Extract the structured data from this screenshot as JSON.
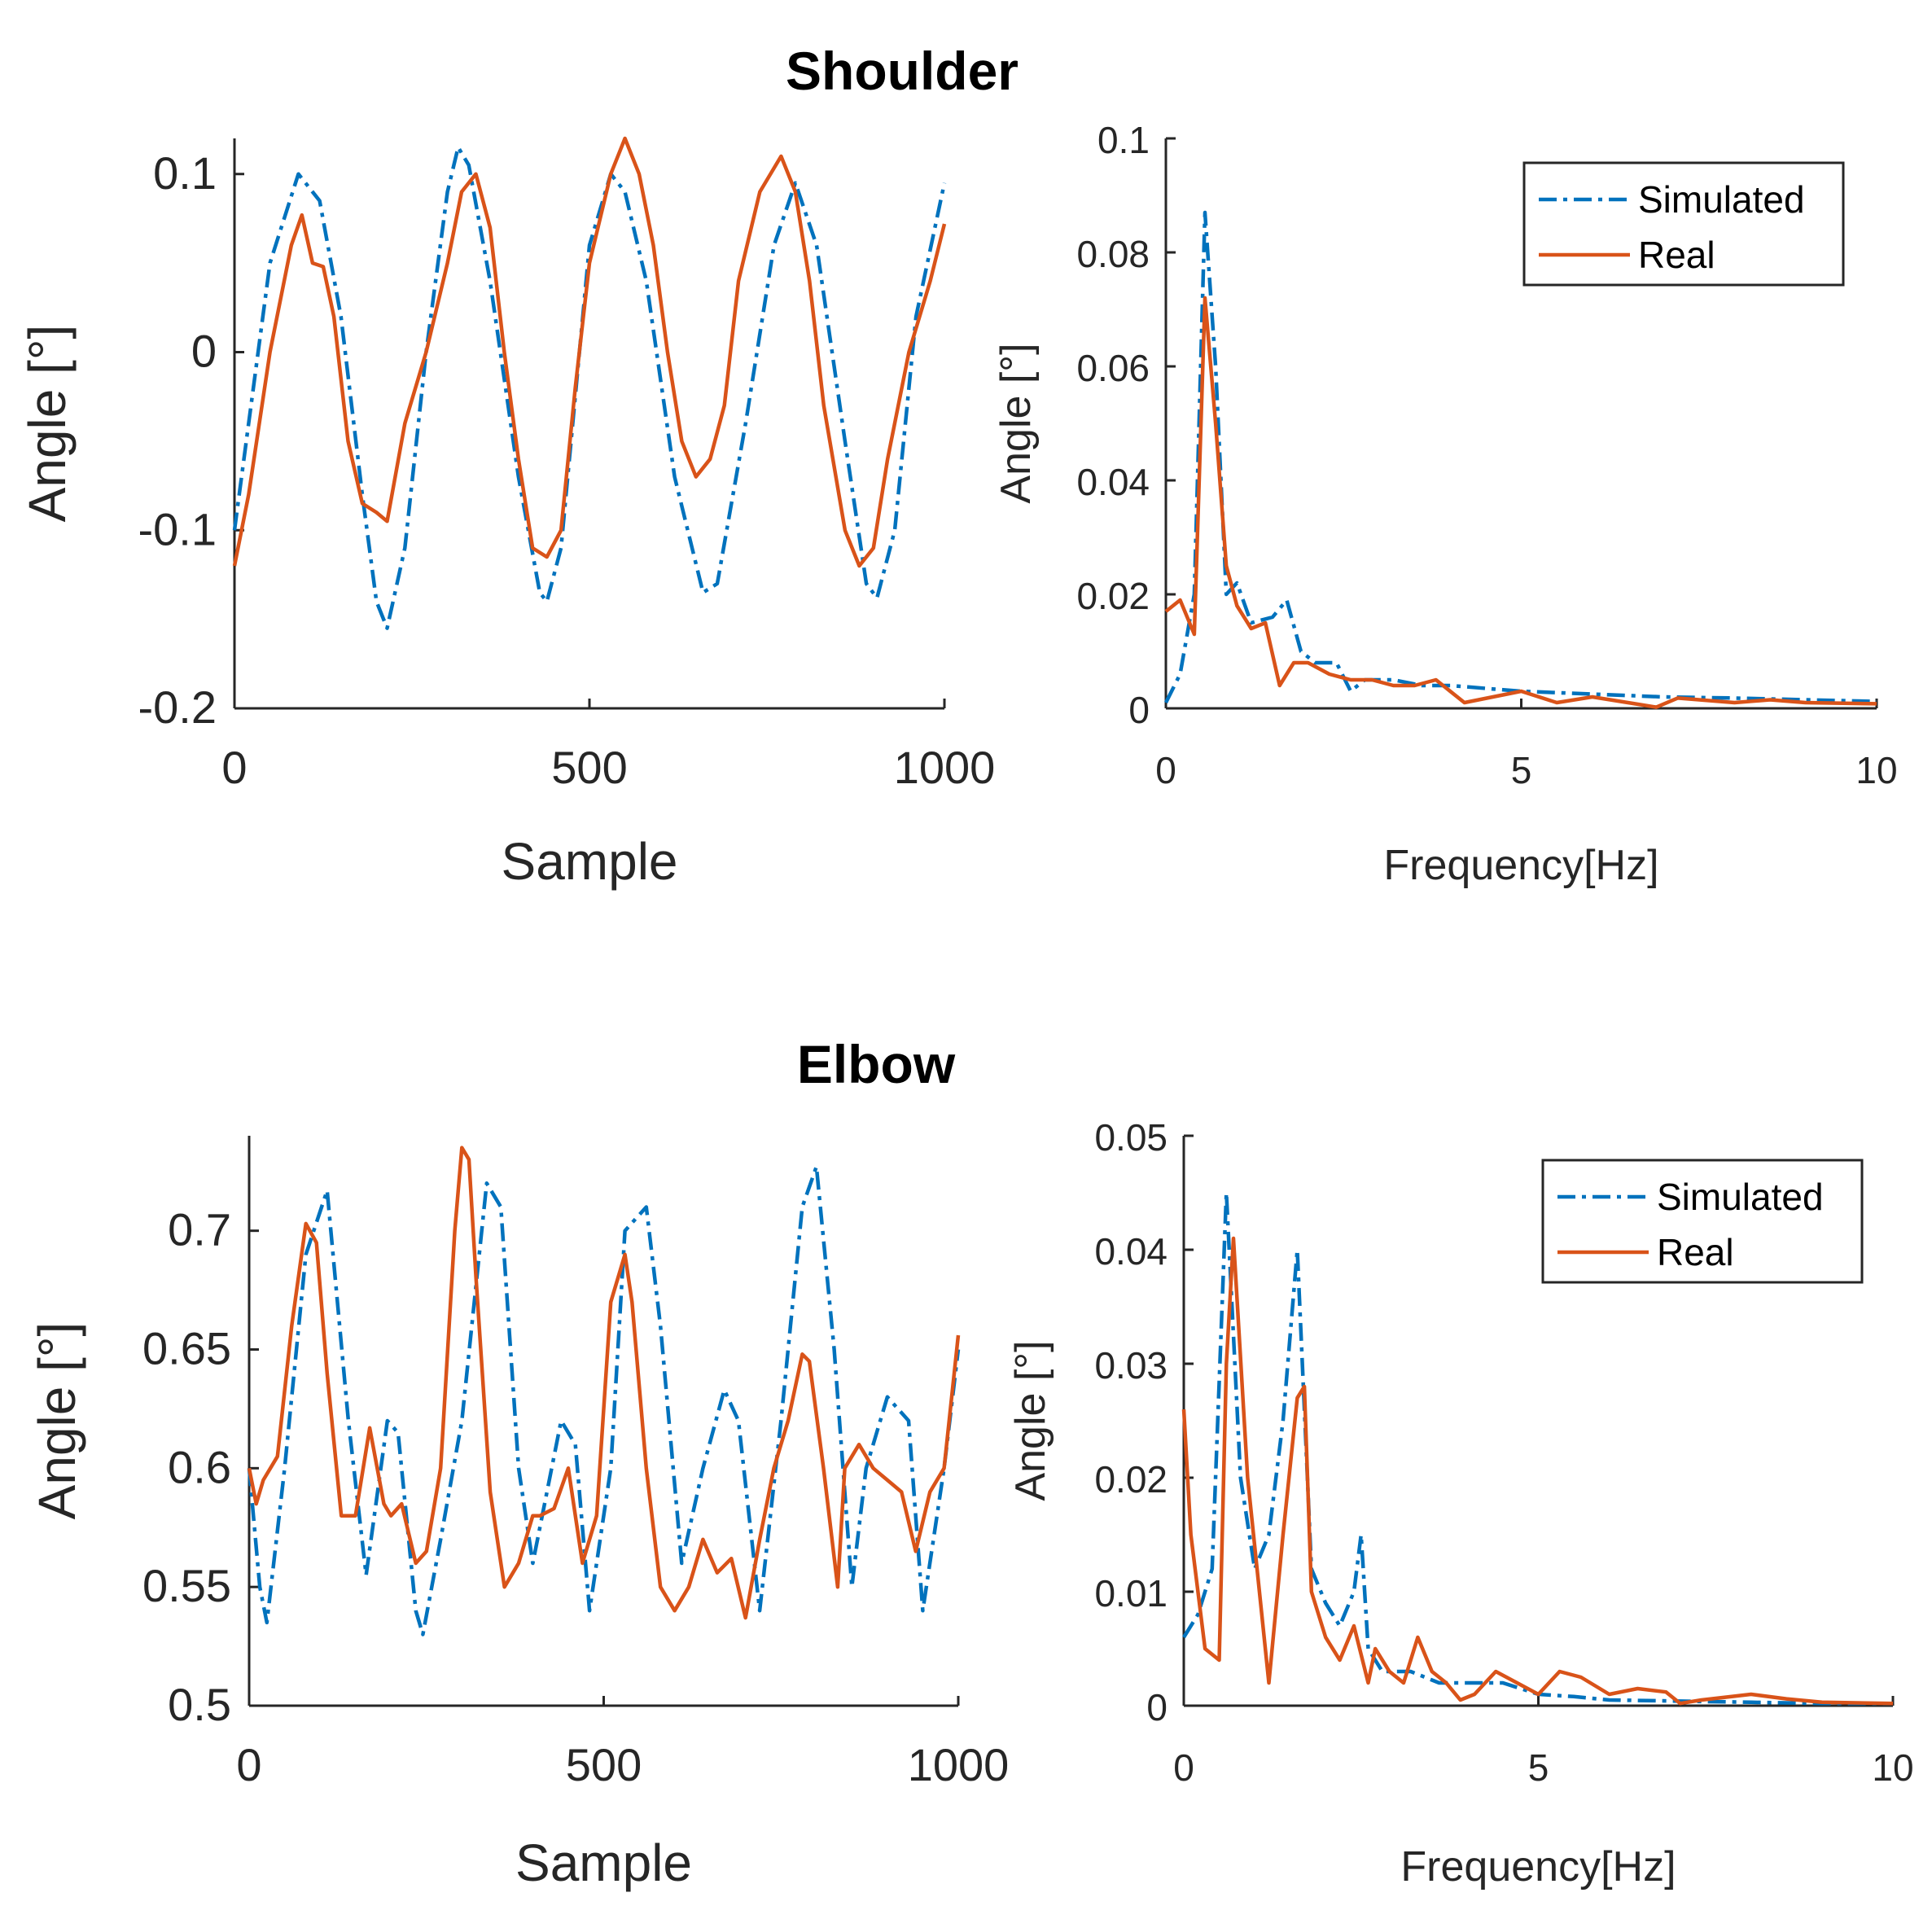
{
  "figure": {
    "shoulder_title": "Shoulder",
    "elbow_title": "Elbow"
  },
  "colors": {
    "simulated": "#0072BD",
    "real": "#D95319",
    "axis": "#262626"
  },
  "chart_data": [
    {
      "id": "shoulder_time",
      "type": "line",
      "title": "Shoulder",
      "xlabel": "Sample",
      "ylabel": "Angle [°]",
      "xlim": [
        0,
        1000
      ],
      "ylim": [
        -0.2,
        0.12
      ],
      "xticks": [
        0,
        500,
        1000
      ],
      "xtick_labels": [
        "0",
        "500",
        "1000"
      ],
      "yticks": [
        -0.2,
        -0.1,
        0,
        0.1
      ],
      "ytick_labels": [
        "-0.2",
        "-0.1",
        "0",
        "0.1"
      ],
      "series": [
        {
          "name": "Simulated",
          "style": "dashdot",
          "x": [
            0,
            20,
            50,
            90,
            120,
            150,
            180,
            200,
            215,
            240,
            270,
            300,
            315,
            330,
            360,
            400,
            430,
            440,
            460,
            500,
            530,
            550,
            580,
            620,
            660,
            680,
            720,
            760,
            790,
            820,
            860,
            890,
            905,
            930,
            960,
            1000
          ],
          "y": [
            -0.1,
            -0.04,
            0.05,
            0.1,
            0.085,
            0.02,
            -0.08,
            -0.14,
            -0.155,
            -0.11,
            0.0,
            0.09,
            0.115,
            0.105,
            0.04,
            -0.07,
            -0.135,
            -0.14,
            -0.11,
            0.06,
            0.1,
            0.09,
            0.04,
            -0.07,
            -0.135,
            -0.13,
            -0.04,
            0.06,
            0.095,
            0.06,
            -0.05,
            -0.13,
            -0.138,
            -0.1,
            0.02,
            0.095
          ]
        },
        {
          "name": "Real",
          "style": "solid",
          "x": [
            0,
            20,
            50,
            80,
            95,
            110,
            125,
            140,
            160,
            180,
            200,
            215,
            240,
            270,
            300,
            320,
            340,
            360,
            380,
            400,
            420,
            440,
            460,
            480,
            500,
            530,
            550,
            570,
            590,
            610,
            630,
            650,
            670,
            690,
            710,
            740,
            770,
            790,
            810,
            830,
            860,
            880,
            900,
            920,
            950,
            980,
            1000
          ],
          "y": [
            -0.12,
            -0.08,
            0.0,
            0.06,
            0.077,
            0.05,
            0.048,
            0.02,
            -0.05,
            -0.085,
            -0.09,
            -0.095,
            -0.04,
            0.0,
            0.05,
            0.09,
            0.1,
            0.07,
            0.0,
            -0.06,
            -0.11,
            -0.115,
            -0.1,
            -0.02,
            0.05,
            0.1,
            0.12,
            0.1,
            0.06,
            0.0,
            -0.05,
            -0.07,
            -0.06,
            -0.03,
            0.04,
            0.09,
            0.11,
            0.09,
            0.04,
            -0.03,
            -0.1,
            -0.12,
            -0.11,
            -0.06,
            0.0,
            0.04,
            0.072
          ]
        }
      ]
    },
    {
      "id": "shoulder_freq",
      "type": "line",
      "title": "",
      "xlabel": "Frequency[Hz]",
      "ylabel": "Angle [°]",
      "xlim": [
        0,
        10
      ],
      "ylim": [
        0,
        0.1
      ],
      "xticks": [
        0,
        5,
        10
      ],
      "xtick_labels": [
        "0",
        "5",
        "10"
      ],
      "yticks": [
        0,
        0.02,
        0.04,
        0.06,
        0.08,
        0.1
      ],
      "ytick_labels": [
        "0",
        "0.02",
        "0.04",
        "0.06",
        "0.08",
        "0.1"
      ],
      "legend": {
        "position": "top-right",
        "entries": [
          "Simulated",
          "Real"
        ]
      },
      "series": [
        {
          "name": "Simulated",
          "style": "dashdot",
          "x": [
            0,
            0.2,
            0.4,
            0.55,
            0.7,
            0.85,
            1.0,
            1.2,
            1.5,
            1.7,
            1.9,
            2.1,
            2.4,
            2.6,
            2.8,
            3.2,
            3.6,
            4.0,
            5.0,
            6.0,
            7.0,
            8.0,
            9.0,
            10.0
          ],
          "y": [
            0.001,
            0.006,
            0.02,
            0.087,
            0.06,
            0.02,
            0.022,
            0.015,
            0.016,
            0.019,
            0.01,
            0.008,
            0.008,
            0.003,
            0.005,
            0.005,
            0.004,
            0.004,
            0.003,
            0.0025,
            0.002,
            0.0018,
            0.0015,
            0.0012
          ]
        },
        {
          "name": "Real",
          "style": "solid",
          "x": [
            0,
            0.2,
            0.4,
            0.55,
            0.7,
            0.85,
            1.0,
            1.2,
            1.4,
            1.6,
            1.8,
            2.0,
            2.3,
            2.6,
            2.9,
            3.2,
            3.5,
            3.8,
            4.2,
            4.6,
            5.0,
            5.5,
            6.0,
            6.5,
            6.9,
            7.2,
            8.0,
            8.5,
            9.0,
            10.0
          ],
          "y": [
            0.017,
            0.019,
            0.013,
            0.072,
            0.05,
            0.025,
            0.018,
            0.014,
            0.015,
            0.004,
            0.008,
            0.008,
            0.006,
            0.005,
            0.005,
            0.004,
            0.004,
            0.005,
            0.001,
            0.002,
            0.003,
            0.001,
            0.002,
            0.001,
            0.0002,
            0.0018,
            0.001,
            0.0015,
            0.001,
            0.0008
          ]
        }
      ]
    },
    {
      "id": "elbow_time",
      "type": "line",
      "title": "Elbow",
      "xlabel": "Sample",
      "ylabel": "Angle [°]",
      "xlim": [
        0,
        1000
      ],
      "ylim": [
        0.5,
        0.74
      ],
      "xticks": [
        0,
        500,
        1000
      ],
      "xtick_labels": [
        "0",
        "500",
        "1000"
      ],
      "yticks": [
        0.5,
        0.55,
        0.6,
        0.65,
        0.7
      ],
      "ytick_labels": [
        "0.5",
        "0.55",
        "0.6",
        "0.65",
        "0.7"
      ],
      "series": [
        {
          "name": "Simulated",
          "style": "dashdot",
          "x": [
            0,
            15,
            25,
            50,
            80,
            110,
            140,
            165,
            195,
            210,
            235,
            245,
            270,
            300,
            335,
            355,
            380,
            400,
            420,
            440,
            460,
            480,
            510,
            530,
            560,
            580,
            610,
            640,
            670,
            690,
            720,
            750,
            780,
            800,
            825,
            850,
            870,
            900,
            930,
            950,
            980,
            1000
          ],
          "y": [
            0.6,
            0.55,
            0.535,
            0.6,
            0.69,
            0.717,
            0.62,
            0.555,
            0.62,
            0.615,
            0.54,
            0.53,
            0.57,
            0.62,
            0.72,
            0.71,
            0.6,
            0.56,
            0.59,
            0.62,
            0.61,
            0.54,
            0.6,
            0.7,
            0.71,
            0.66,
            0.56,
            0.6,
            0.633,
            0.62,
            0.54,
            0.62,
            0.71,
            0.727,
            0.65,
            0.55,
            0.6,
            0.63,
            0.62,
            0.54,
            0.6,
            0.65
          ]
        },
        {
          "name": "Real",
          "style": "solid",
          "x": [
            0,
            10,
            20,
            40,
            60,
            80,
            95,
            110,
            130,
            150,
            170,
            190,
            200,
            215,
            235,
            250,
            270,
            290,
            300,
            310,
            320,
            340,
            360,
            380,
            400,
            410,
            430,
            450,
            470,
            490,
            510,
            530,
            540,
            560,
            580,
            600,
            620,
            640,
            660,
            680,
            700,
            720,
            740,
            760,
            780,
            790,
            810,
            830,
            840,
            860,
            880,
            900,
            920,
            940,
            960,
            980,
            1000
          ],
          "y": [
            0.6,
            0.585,
            0.595,
            0.605,
            0.66,
            0.703,
            0.695,
            0.64,
            0.58,
            0.58,
            0.617,
            0.585,
            0.58,
            0.585,
            0.56,
            0.565,
            0.6,
            0.7,
            0.735,
            0.73,
            0.68,
            0.59,
            0.55,
            0.56,
            0.58,
            0.58,
            0.583,
            0.6,
            0.56,
            0.58,
            0.67,
            0.69,
            0.67,
            0.6,
            0.55,
            0.54,
            0.55,
            0.57,
            0.556,
            0.562,
            0.537,
            0.57,
            0.6,
            0.62,
            0.648,
            0.645,
            0.6,
            0.55,
            0.6,
            0.61,
            0.6,
            0.595,
            0.59,
            0.565,
            0.59,
            0.6,
            0.656
          ]
        }
      ]
    },
    {
      "id": "elbow_freq",
      "type": "line",
      "title": "",
      "xlabel": "Frequency[Hz]",
      "ylabel": "Angle [°]",
      "xlim": [
        0,
        10
      ],
      "ylim": [
        0,
        0.05
      ],
      "xticks": [
        0,
        5,
        10
      ],
      "xtick_labels": [
        "0",
        "5",
        "10"
      ],
      "yticks": [
        0,
        0.01,
        0.02,
        0.03,
        0.04,
        0.05
      ],
      "ytick_labels": [
        "0",
        "0.01",
        "0.02",
        "0.03",
        "0.04",
        "0.05"
      ],
      "legend": {
        "position": "top-right",
        "entries": [
          "Simulated",
          "Real"
        ]
      },
      "series": [
        {
          "name": "Simulated",
          "style": "dashdot",
          "x": [
            0,
            0.2,
            0.4,
            0.6,
            0.8,
            1.0,
            1.2,
            1.4,
            1.6,
            1.8,
            2.0,
            2.2,
            2.4,
            2.5,
            2.6,
            2.8,
            3.2,
            3.6,
            4.0,
            4.5,
            5.0,
            5.5,
            6.0,
            7.0,
            8.0,
            9.0,
            10.0
          ],
          "y": [
            0.006,
            0.008,
            0.012,
            0.045,
            0.02,
            0.012,
            0.015,
            0.025,
            0.04,
            0.012,
            0.009,
            0.007,
            0.01,
            0.015,
            0.005,
            0.003,
            0.003,
            0.002,
            0.002,
            0.002,
            0.001,
            0.0008,
            0.0005,
            0.0004,
            0.0003,
            0.0002,
            0.0002
          ]
        },
        {
          "name": "Real",
          "style": "solid",
          "x": [
            0,
            0.1,
            0.3,
            0.5,
            0.6,
            0.7,
            0.9,
            1.1,
            1.2,
            1.4,
            1.6,
            1.7,
            1.8,
            2.0,
            2.2,
            2.4,
            2.6,
            2.7,
            2.9,
            3.1,
            3.3,
            3.5,
            3.7,
            3.9,
            4.1,
            4.4,
            4.7,
            5.0,
            5.3,
            5.6,
            6.0,
            6.4,
            6.8,
            7.0,
            7.3,
            8.0,
            8.5,
            9.0,
            10.0
          ],
          "y": [
            0.026,
            0.015,
            0.005,
            0.004,
            0.03,
            0.041,
            0.02,
            0.008,
            0.002,
            0.015,
            0.027,
            0.028,
            0.01,
            0.006,
            0.004,
            0.007,
            0.002,
            0.005,
            0.003,
            0.002,
            0.006,
            0.003,
            0.002,
            0.0005,
            0.001,
            0.003,
            0.002,
            0.001,
            0.003,
            0.0025,
            0.001,
            0.0015,
            0.0012,
            0.0002,
            0.0005,
            0.001,
            0.0006,
            0.0003,
            0.0002
          ]
        }
      ]
    }
  ]
}
